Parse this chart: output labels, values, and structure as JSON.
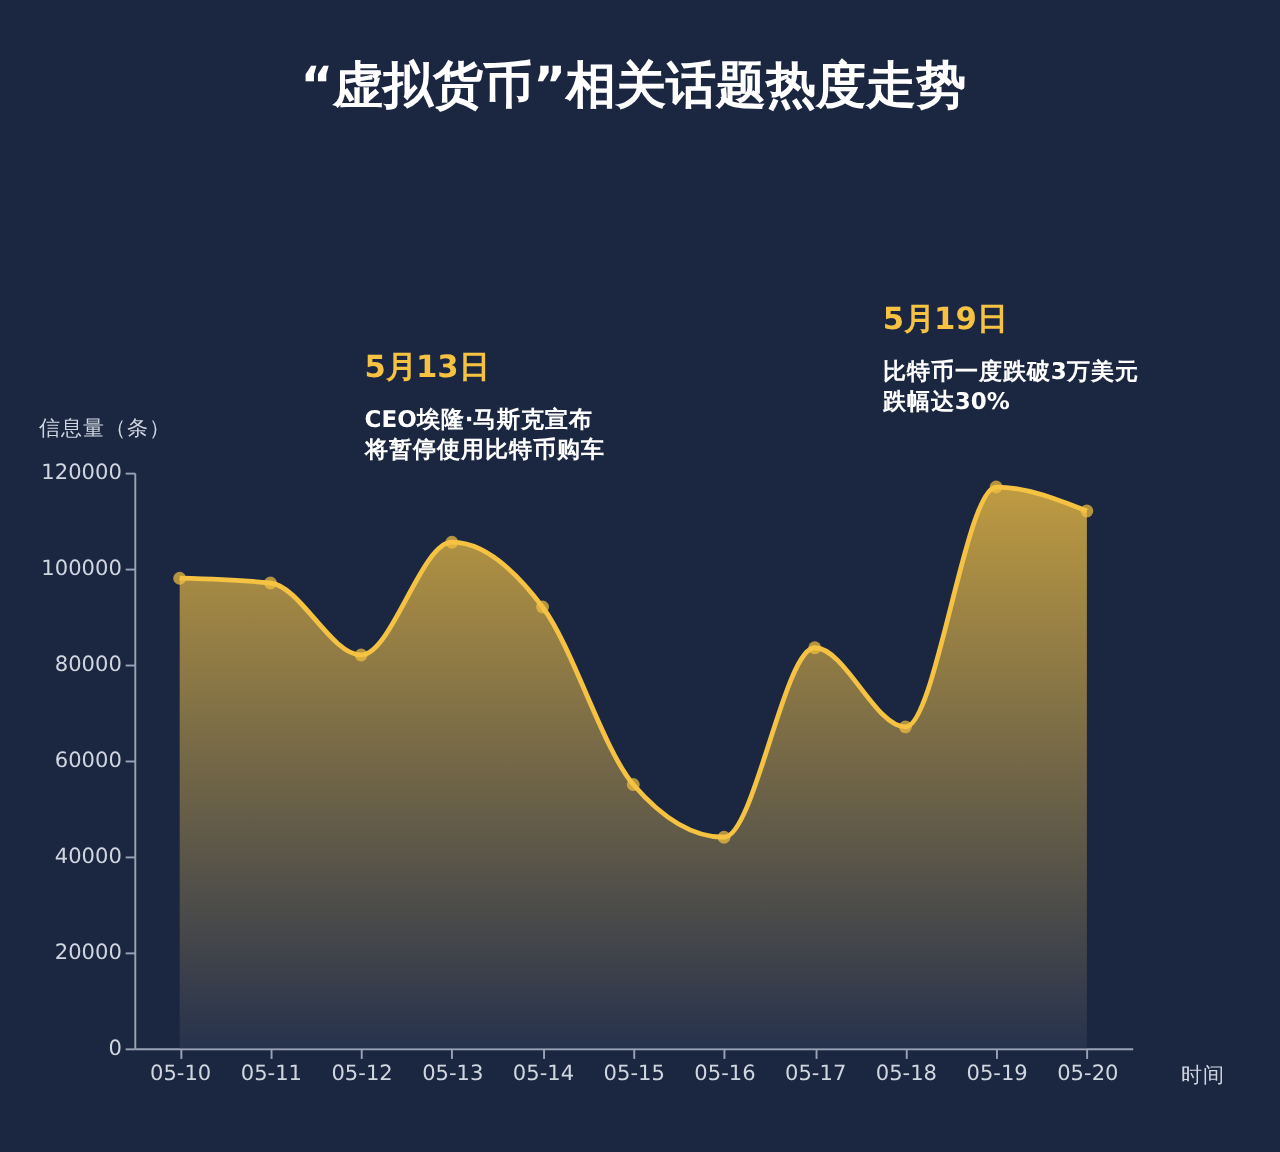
{
  "chart_data": {
    "type": "area",
    "title": "“虚拟货币”相关话题热度走势",
    "ylabel": "信息量（条）",
    "xlabel": "时间",
    "categories": [
      "05-10",
      "05-11",
      "05-12",
      "05-13",
      "05-14",
      "05-15",
      "05-16",
      "05-17",
      "05-18",
      "05-19",
      "05-20"
    ],
    "series": [
      {
        "color": "#f5c242",
        "values": [
          98000,
          97000,
          82000,
          105500,
          92000,
          55000,
          44000,
          83500,
          67000,
          117000,
          112000
        ]
      }
    ],
    "ylim": [
      0,
      120000
    ],
    "yticks": [
      0,
      20000,
      40000,
      60000,
      80000,
      100000,
      120000
    ],
    "grid": false,
    "marker": "circle",
    "line_style": "solid",
    "annotations": [
      "5月13日",
      "CEO埃隆·马斯克宣布",
      "将暂停使用比特币购车",
      "5月19日",
      "比特币一度跌破3万美元",
      "跌幅达30%"
    ]
  }
}
